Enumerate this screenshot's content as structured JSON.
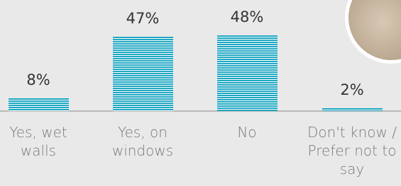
{
  "chart_data": {
    "type": "bar",
    "categories": [
      "Yes, wet walls",
      "Yes, on windows",
      "No",
      "Don't know / Prefer not to say"
    ],
    "values": [
      8,
      47,
      48,
      2
    ],
    "value_labels": [
      "8%",
      "47%",
      "48%",
      "2%"
    ],
    "color": "#1ea7c2"
  }
}
